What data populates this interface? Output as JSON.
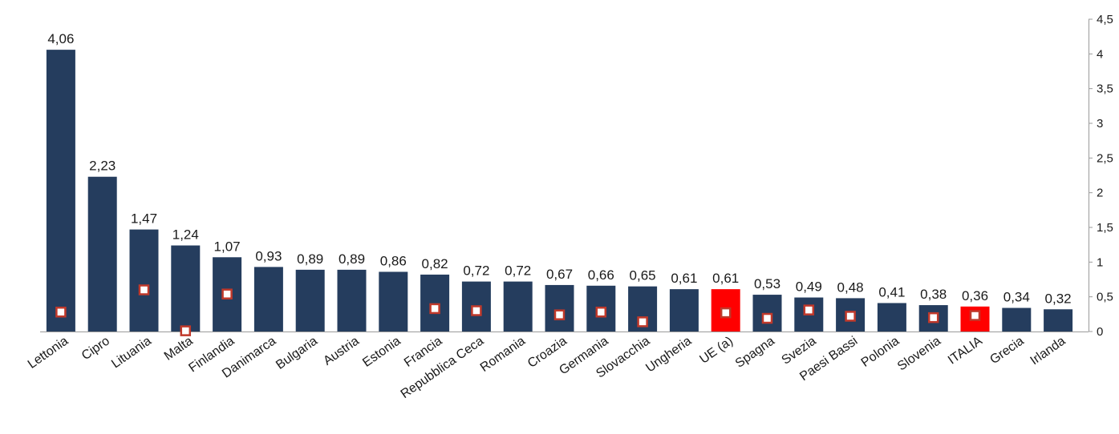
{
  "chart_data": {
    "type": "bar",
    "categories": [
      "Lettonia",
      "Cipro",
      "Lituania",
      "Malta",
      "Finlandia",
      "Danimarca",
      "Bulgaria",
      "Austria",
      "Estonia",
      "Francia",
      "Repubblica Ceca",
      "Romania",
      "Croazia",
      "Germania",
      "Slovacchia",
      "Ungheria",
      "UE (a)",
      "Spagna",
      "Svezia",
      "Paesi Bassi",
      "Polonia",
      "Slovenia",
      "ITALIA",
      "Grecia",
      "Irlanda"
    ],
    "series": [
      {
        "values": [
          4.06,
          2.23,
          1.47,
          1.24,
          1.07,
          0.93,
          0.89,
          0.89,
          0.86,
          0.82,
          0.72,
          0.72,
          0.67,
          0.66,
          0.65,
          0.61,
          0.61,
          0.53,
          0.49,
          0.48,
          0.41,
          0.38,
          0.36,
          0.34,
          0.32
        ],
        "value_labels": [
          "4,06",
          "2,23",
          "1,47",
          "1,24",
          "1,07",
          "0,93",
          "0,89",
          "0,89",
          "0,86",
          "0,82",
          "0,72",
          "0,72",
          "0,67",
          "0,66",
          "0,65",
          "0,61",
          "0,61",
          "0,53",
          "0,49",
          "0,48",
          "0,41",
          "0,38",
          "0,36",
          "0,34",
          "0,32"
        ]
      },
      {
        "marker": "square",
        "values": [
          0.28,
          null,
          0.6,
          0.01,
          0.54,
          null,
          null,
          null,
          null,
          0.33,
          0.3,
          null,
          0.24,
          0.28,
          0.14,
          null,
          0.27,
          0.19,
          0.31,
          0.22,
          null,
          0.2,
          0.23,
          null,
          null
        ]
      }
    ],
    "highlighted_categories": [
      "UE (a)",
      "ITALIA"
    ],
    "colors": {
      "bar": "#253d5e",
      "highlight": "#ff0000",
      "marker_fill": "#ffffff",
      "marker_stroke": "#c0392b"
    },
    "yaxis": {
      "position": "right",
      "ylim": [
        0,
        4.5
      ],
      "ticks": [
        0,
        0.5,
        1,
        1.5,
        2,
        2.5,
        3,
        3.5,
        4,
        4.5
      ],
      "tick_labels": [
        "0",
        "0,5",
        "1",
        "1,5",
        "2",
        "2,5",
        "3",
        "3,5",
        "4",
        "4,5"
      ]
    },
    "grid": false,
    "legend": "none"
  }
}
